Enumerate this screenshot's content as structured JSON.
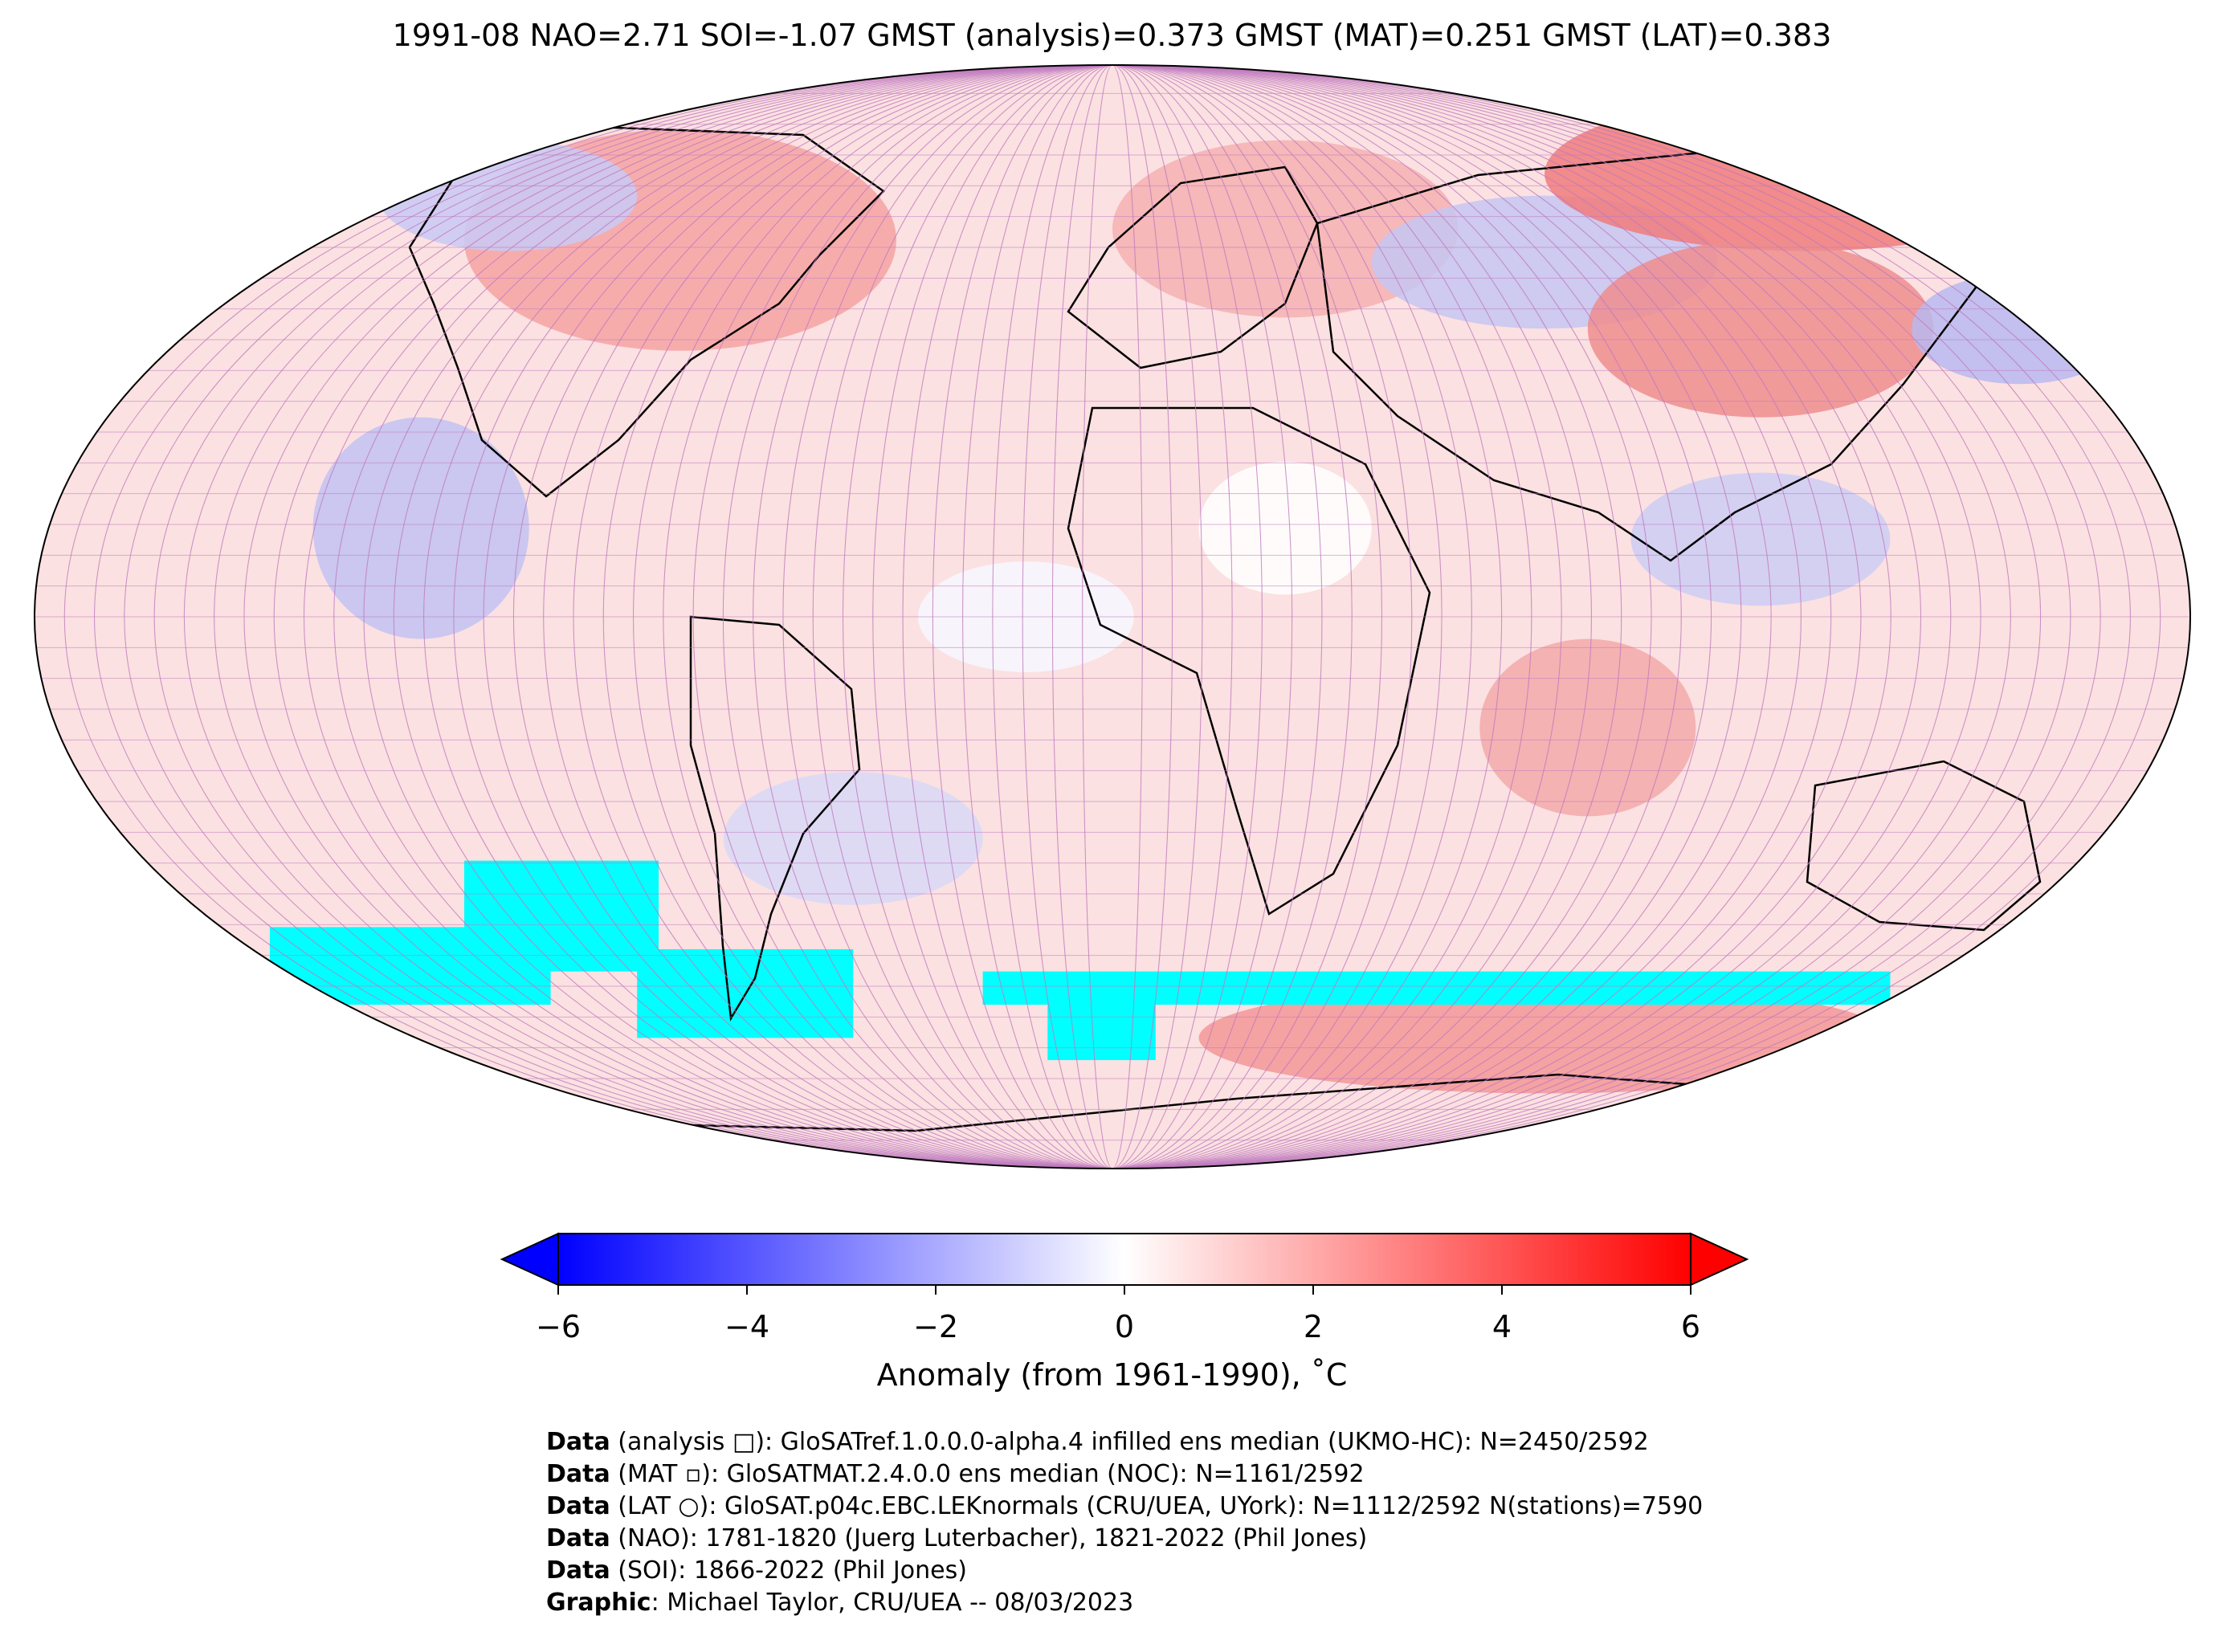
{
  "title": "1991-08 NAO=2.71 SOI=-1.07 GMST (analysis)=0.373 GMST (MAT)=0.251 GMST (LAT)=0.383",
  "colorbar": {
    "label": "Anomaly (from 1961-1990), ˚C",
    "ticks": [
      "−6",
      "−4",
      "−2",
      "0",
      "2",
      "4",
      "6"
    ],
    "range": [
      -6,
      6
    ],
    "cmap": [
      "#0000ff",
      "#ffffff",
      "#ff0000"
    ],
    "extend": "both"
  },
  "map": {
    "projection": "Robinson",
    "gridlines": true,
    "missing_color": "#00ffff",
    "markers": {
      "analysis": "square",
      "MAT": "small square",
      "LAT": "circle"
    }
  },
  "credits": [
    {
      "key": "Data",
      "text": " (analysis □): GloSATref.1.0.0.0-alpha.4 infilled ens median (UKMO-HC): N=2450/2592"
    },
    {
      "key": "Data",
      "text": " (MAT ▫): GloSATMAT.2.4.0.0 ens median (NOC): N=1161/2592"
    },
    {
      "key": "Data",
      "text": " (LAT ○): GloSAT.p04c.EBC.LEKnormals (CRU/UEA, UYork): N=1112/2592 N(stations)=7590"
    },
    {
      "key": "Data",
      "text": " (NAO): 1781-1820 (Juerg Luterbacher), 1821-2022 (Phil Jones)"
    },
    {
      "key": "Data",
      "text": " (SOI): 1866-2022 (Phil Jones)"
    },
    {
      "key": "Graphic",
      "text": ": Michael Taylor, CRU/UEA -- 08/03/2023"
    }
  ]
}
